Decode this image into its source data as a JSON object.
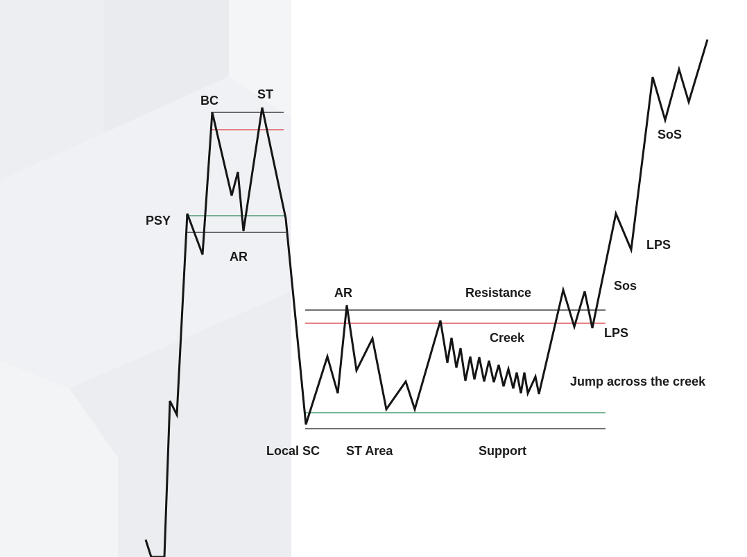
{
  "colors": {
    "price": "#151515",
    "resistance": "#1a1a1a",
    "creek": "#d9363e",
    "support_green": "#2e8b57",
    "support": "#1a1a1a",
    "background_panel": "#f2f3f5"
  },
  "labels": {
    "bc": "BC",
    "st_top": "ST",
    "psy": "PSY",
    "ar_top": "AR",
    "ar_range": "AR",
    "resistance": "Resistance",
    "creek": "Creek",
    "jump": "Jump across the creek",
    "local_sc": "Local SC",
    "st_area": "ST Area",
    "support": "Support",
    "sos_small": "Sos",
    "lps_low": "LPS",
    "lps_high": "LPS",
    "sos_big": "SoS"
  }
}
